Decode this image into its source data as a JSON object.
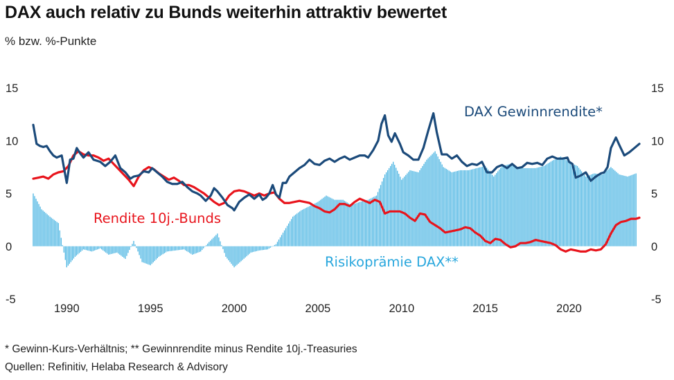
{
  "title": "DAX auch relativ zu Bunds weiterhin attraktiv bewertet",
  "subtitle": "% bzw. %-Punkte",
  "footnote": "* Gewinn-Kurs-Verhältnis; ** Gewinnrendite minus Rendite 10j.-Treasuries",
  "source": "Quellen: Refinitiv, Helaba Research & Advisory",
  "chart_data": {
    "type": "line",
    "ylim": [
      -5,
      15
    ],
    "xlim": [
      1988.0,
      2024.2
    ],
    "y_ticks": [
      "15",
      "10",
      "5",
      "0",
      "-5"
    ],
    "x_ticks": [
      "1990",
      "1995",
      "2000",
      "2005",
      "2010",
      "2015",
      "2020"
    ],
    "grid": false,
    "colors": {
      "dax": "#1b4a7a",
      "bunds": "#e8141c",
      "risk": "#29a7dd"
    },
    "series": [
      {
        "key": "dax",
        "name": "DAX Gewinnrendite*",
        "style": "line",
        "x": [
          1988.0,
          1988.1,
          1988.2,
          1988.4,
          1988.6,
          1988.8,
          1989.0,
          1989.2,
          1989.4,
          1989.7,
          1990.0,
          1990.2,
          1990.4,
          1990.6,
          1990.8,
          1991.0,
          1991.3,
          1991.6,
          1992.0,
          1992.3,
          1992.6,
          1992.9,
          1993.2,
          1993.5,
          1993.8,
          1994.0,
          1994.3,
          1994.6,
          1994.9,
          1995.1,
          1995.4,
          1995.7,
          1996.0,
          1996.3,
          1996.6,
          1996.9,
          1997.2,
          1997.5,
          1997.8,
          1998.0,
          1998.3,
          1998.6,
          1998.8,
          1999.0,
          1999.3,
          1999.6,
          1999.9,
          2000.0,
          2000.3,
          2000.6,
          2000.9,
          2001.2,
          2001.5,
          2001.7,
          2001.9,
          2002.1,
          2002.3,
          2002.5,
          2002.7,
          2002.9,
          2003.1,
          2003.3,
          2003.6,
          2003.9,
          2004.2,
          2004.5,
          2004.8,
          2005.1,
          2005.4,
          2005.7,
          2006.0,
          2006.3,
          2006.6,
          2006.9,
          2007.2,
          2007.5,
          2007.8,
          2008.0,
          2008.3,
          2008.6,
          2008.8,
          2009.0,
          2009.2,
          2009.4,
          2009.6,
          2009.9,
          2010.1,
          2010.4,
          2010.7,
          2011.0,
          2011.3,
          2011.6,
          2011.9,
          2012.1,
          2012.4,
          2012.7,
          2013.0,
          2013.3,
          2013.6,
          2013.9,
          2014.2,
          2014.5,
          2014.8,
          2015.1,
          2015.4,
          2015.7,
          2016.0,
          2016.3,
          2016.6,
          2016.9,
          2017.2,
          2017.5,
          2017.8,
          2018.1,
          2018.4,
          2018.7,
          2019.0,
          2019.3,
          2019.6,
          2019.9,
          2020.0,
          2020.2,
          2020.4,
          2020.7,
          2021.0,
          2021.3,
          2021.6,
          2021.9,
          2022.1,
          2022.3,
          2022.5,
          2022.8,
          2023.0,
          2023.3,
          2023.6,
          2023.9,
          2024.2
        ],
        "y": [
          11.5,
          10.6,
          9.7,
          9.5,
          9.4,
          9.5,
          9.0,
          8.6,
          8.4,
          8.6,
          6.0,
          8.2,
          8.3,
          9.3,
          8.8,
          8.4,
          8.9,
          8.2,
          8.0,
          7.6,
          8.0,
          8.6,
          7.4,
          7.0,
          6.4,
          6.6,
          6.7,
          7.1,
          7.0,
          7.4,
          7.0,
          6.6,
          6.1,
          5.9,
          5.9,
          6.1,
          5.6,
          5.2,
          5.0,
          4.8,
          4.3,
          4.8,
          5.5,
          5.2,
          4.6,
          3.9,
          3.6,
          3.4,
          4.2,
          4.6,
          4.9,
          4.5,
          4.9,
          4.4,
          4.6,
          5.0,
          5.8,
          4.9,
          4.6,
          6.0,
          6.0,
          6.6,
          7.0,
          7.4,
          7.7,
          8.2,
          7.8,
          7.7,
          8.1,
          8.3,
          8.0,
          8.3,
          8.5,
          8.2,
          8.4,
          8.6,
          8.6,
          8.4,
          9.1,
          10.0,
          11.6,
          12.4,
          10.5,
          9.9,
          10.7,
          9.7,
          8.9,
          8.6,
          8.2,
          8.2,
          9.3,
          11.0,
          12.6,
          10.8,
          8.7,
          8.7,
          8.3,
          8.6,
          8.0,
          7.6,
          7.8,
          7.7,
          8.0,
          7.0,
          7.0,
          7.5,
          7.7,
          7.4,
          7.8,
          7.4,
          7.5,
          7.9,
          7.8,
          7.9,
          7.7,
          8.3,
          8.5,
          8.3,
          8.3,
          8.4,
          8.0,
          7.8,
          6.5,
          6.7,
          7.0,
          6.2,
          6.6,
          6.9,
          7.0,
          7.5,
          9.3,
          10.3,
          9.6,
          8.6,
          8.9,
          9.3,
          9.7
        ]
      },
      {
        "key": "bunds",
        "name": "Rendite 10j.-Bunds",
        "style": "line",
        "x": [
          1988.0,
          1988.3,
          1988.6,
          1988.9,
          1989.2,
          1989.5,
          1989.8,
          1990.1,
          1990.4,
          1990.7,
          1991.0,
          1991.3,
          1991.6,
          1991.9,
          1992.2,
          1992.5,
          1992.8,
          1993.1,
          1993.4,
          1993.7,
          1994.0,
          1994.3,
          1994.6,
          1994.9,
          1995.2,
          1995.5,
          1995.8,
          1996.1,
          1996.4,
          1996.7,
          1997.0,
          1997.3,
          1997.6,
          1997.9,
          1998.2,
          1998.5,
          1998.8,
          1999.1,
          1999.4,
          1999.7,
          2000.0,
          2000.3,
          2000.6,
          2000.9,
          2001.2,
          2001.5,
          2001.8,
          2002.1,
          2002.4,
          2002.7,
          2003.0,
          2003.3,
          2003.6,
          2003.9,
          2004.2,
          2004.5,
          2004.8,
          2005.1,
          2005.4,
          2005.7,
          2006.0,
          2006.3,
          2006.6,
          2006.9,
          2007.2,
          2007.5,
          2007.8,
          2008.1,
          2008.4,
          2008.7,
          2009.0,
          2009.3,
          2009.6,
          2009.9,
          2010.2,
          2010.5,
          2010.8,
          2011.1,
          2011.4,
          2011.7,
          2012.0,
          2012.3,
          2012.6,
          2012.9,
          2013.2,
          2013.5,
          2013.8,
          2014.1,
          2014.4,
          2014.7,
          2015.0,
          2015.3,
          2015.6,
          2015.9,
          2016.2,
          2016.5,
          2016.8,
          2017.1,
          2017.4,
          2017.7,
          2018.0,
          2018.3,
          2018.6,
          2018.9,
          2019.2,
          2019.5,
          2019.8,
          2020.1,
          2020.4,
          2020.7,
          2021.0,
          2021.3,
          2021.6,
          2021.9,
          2022.2,
          2022.5,
          2022.8,
          2023.1,
          2023.4,
          2023.7,
          2024.0,
          2024.2
        ],
        "y": [
          6.4,
          6.5,
          6.6,
          6.4,
          6.8,
          7.0,
          7.1,
          7.6,
          8.6,
          9.0,
          8.7,
          8.6,
          8.6,
          8.4,
          8.1,
          8.3,
          7.8,
          7.3,
          6.8,
          6.3,
          5.7,
          6.6,
          7.2,
          7.5,
          7.3,
          6.9,
          6.6,
          6.3,
          6.5,
          6.2,
          5.8,
          5.8,
          5.6,
          5.3,
          5.0,
          4.6,
          4.2,
          3.9,
          4.1,
          4.8,
          5.2,
          5.3,
          5.2,
          5.0,
          4.8,
          5.0,
          4.8,
          5.0,
          5.1,
          4.5,
          4.1,
          4.1,
          4.2,
          4.3,
          4.2,
          4.1,
          3.8,
          3.6,
          3.3,
          3.2,
          3.5,
          4.0,
          4.0,
          3.8,
          4.2,
          4.5,
          4.3,
          4.1,
          4.4,
          4.2,
          3.1,
          3.3,
          3.3,
          3.3,
          3.1,
          2.7,
          2.4,
          3.1,
          3.0,
          2.3,
          2.0,
          1.7,
          1.3,
          1.4,
          1.5,
          1.6,
          1.8,
          1.7,
          1.3,
          1.0,
          0.5,
          0.3,
          0.7,
          0.6,
          0.2,
          -0.1,
          0.0,
          0.3,
          0.3,
          0.4,
          0.6,
          0.5,
          0.4,
          0.3,
          0.1,
          -0.3,
          -0.5,
          -0.3,
          -0.4,
          -0.5,
          -0.5,
          -0.3,
          -0.4,
          -0.3,
          0.2,
          1.2,
          2.0,
          2.3,
          2.4,
          2.6,
          2.6,
          2.7
        ]
      },
      {
        "key": "risk",
        "name": "Risikoprämie DAX**",
        "style": "bars",
        "x": [
          1988.0,
          1988.5,
          1989.0,
          1989.5,
          1990.0,
          1990.5,
          1991.0,
          1991.5,
          1992.0,
          1992.5,
          1993.0,
          1993.5,
          1994.0,
          1994.5,
          1995.0,
          1995.5,
          1996.0,
          1996.5,
          1997.0,
          1997.5,
          1998.0,
          1998.5,
          1999.0,
          1999.5,
          2000.0,
          2000.5,
          2001.0,
          2001.5,
          2002.0,
          2002.5,
          2003.0,
          2003.5,
          2004.0,
          2004.5,
          2005.0,
          2005.5,
          2006.0,
          2006.5,
          2007.0,
          2007.5,
          2008.0,
          2008.5,
          2009.0,
          2009.5,
          2010.0,
          2010.5,
          2011.0,
          2011.5,
          2012.0,
          2012.5,
          2013.0,
          2013.5,
          2014.0,
          2014.5,
          2015.0,
          2015.5,
          2016.0,
          2016.5,
          2017.0,
          2017.5,
          2018.0,
          2018.5,
          2019.0,
          2019.5,
          2020.0,
          2020.5,
          2021.0,
          2021.5,
          2022.0,
          2022.5,
          2023.0,
          2023.5,
          2024.0
        ],
        "y": [
          5.0,
          3.5,
          2.8,
          2.2,
          -2.0,
          -1.0,
          -0.3,
          -0.5,
          -0.2,
          -0.8,
          -0.6,
          -1.2,
          0.5,
          -1.5,
          -1.8,
          -1.0,
          -0.5,
          -0.4,
          -0.3,
          -0.8,
          -0.5,
          0.4,
          1.2,
          -1.0,
          -2.0,
          -1.3,
          -0.6,
          -0.4,
          -0.3,
          0.2,
          1.5,
          2.8,
          3.4,
          3.8,
          4.2,
          4.8,
          4.4,
          4.4,
          3.9,
          4.2,
          4.4,
          4.8,
          6.8,
          8.0,
          6.3,
          7.2,
          7.0,
          8.2,
          9.0,
          7.5,
          7.0,
          7.2,
          7.2,
          7.4,
          7.6,
          6.6,
          7.6,
          7.8,
          7.4,
          7.4,
          7.4,
          7.6,
          8.1,
          8.5,
          8.0,
          7.6,
          6.6,
          6.9,
          6.8,
          7.5,
          6.8,
          6.6,
          6.9
        ]
      }
    ],
    "labels": {
      "dax": "DAX Gewinnrendite*",
      "bunds": "Rendite 10j.-Bunds",
      "risk": "Risikoprämie DAX**"
    }
  }
}
